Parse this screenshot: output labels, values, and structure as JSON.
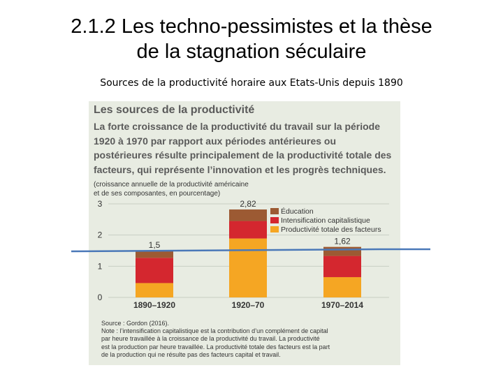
{
  "slide": {
    "title_line1": "2.1.2 Les techno-pessimistes et la thèse",
    "title_line2": "de la stagnation séculaire",
    "subtitle": "Sources de la productivité horaire aux Etats-Unis depuis 1890"
  },
  "panel": {
    "title": "Les sources de la productivité",
    "text": "La forte croissance de la productivité du travail sur la période 1920 à 1970 par rapport aux périodes antérieures ou postérieures résulte principalement de la productivité totale des facteurs, qui représente l’innovation et les progrès techniques.",
    "unit_line1": "(croissance annuelle de la productivité américaine",
    "unit_line2": "et de ses composantes, en pourcentage)",
    "source": "Source : Gordon (2016).",
    "note_lines": [
      "Note : l’intensification capitalistique est la contribution d’un complément de capital",
      "par heure travaillée à la croissance de la productivité du travail. La productivité",
      "est la production par heure travaillée. La productivité totale des facteurs est la part",
      "de la production qui ne résulte pas des facteurs capital et travail."
    ]
  },
  "chart_data": {
    "type": "bar",
    "stacked": true,
    "categories": [
      "1890–1920",
      "1920–70",
      "1970–2014"
    ],
    "series": [
      {
        "name": "Productivité totale des facteurs",
        "color": "#f5a623",
        "values": [
          0.46,
          1.89,
          0.65
        ]
      },
      {
        "name": "Intensification capitalistique",
        "color": "#d4272f",
        "values": [
          0.81,
          0.56,
          0.68
        ]
      },
      {
        "name": "Éducation",
        "color": "#9c5a33",
        "values": [
          0.23,
          0.37,
          0.29
        ]
      }
    ],
    "totals": [
      "1,5",
      "2,82",
      "1,62"
    ],
    "ylim": [
      0,
      3
    ],
    "yticks": [
      0,
      1,
      2,
      3
    ],
    "legend_order": [
      "Éducation",
      "Intensification capitalistique",
      "Productivité totale des facteurs"
    ],
    "legend_position": "top-right",
    "overlay_line_color": "#4a78b8"
  }
}
